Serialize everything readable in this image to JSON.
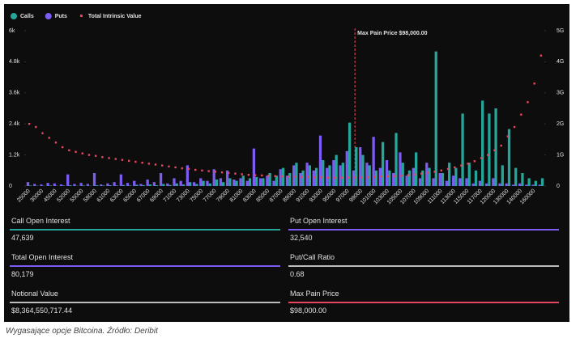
{
  "chart_data": {
    "type": "bar",
    "categories": [
      "25000",
      null,
      "30000",
      null,
      "45000",
      null,
      "52000",
      null,
      "55000",
      null,
      "58000",
      null,
      "61000",
      null,
      "63000",
      null,
      "65000",
      null,
      "67000",
      null,
      "69000",
      null,
      "71000",
      null,
      "73000",
      null,
      "75000",
      null,
      "77000",
      null,
      "79000",
      null,
      "81000",
      null,
      "83000",
      null,
      "85000",
      null,
      "87000",
      null,
      "89000",
      null,
      "91000",
      null,
      "93000",
      null,
      "95000",
      null,
      "97000",
      null,
      "99000",
      null,
      "101000",
      null,
      "103000",
      null,
      "105000",
      null,
      "107000",
      null,
      "109000",
      null,
      "111000",
      null,
      "113000",
      null,
      "115000",
      null,
      "117000",
      null,
      "120000",
      null,
      "130000",
      null,
      "140000",
      null,
      "160000",
      null
    ],
    "series": [
      {
        "name": "Calls",
        "type": "bar",
        "color": "#26a69a",
        "values": [
          20,
          10,
          10,
          20,
          10,
          20,
          30,
          10,
          20,
          10,
          30,
          20,
          30,
          20,
          40,
          20,
          50,
          30,
          60,
          30,
          80,
          40,
          100,
          60,
          150,
          80,
          200,
          100,
          250,
          150,
          300,
          200,
          400,
          300,
          350,
          300,
          500,
          400,
          700,
          500,
          900,
          600,
          800,
          700,
          1000,
          800,
          1200,
          900,
          2450,
          1500,
          1200,
          800,
          600,
          1700,
          600,
          2050,
          900,
          600,
          1300,
          600,
          700,
          5200,
          500,
          900,
          700,
          2800,
          900,
          600,
          3300,
          2800,
          3000,
          800,
          2200,
          700,
          500,
          300,
          200,
          300
        ]
      },
      {
        "name": "Puts",
        "type": "bar",
        "color": "#7c5cf2",
        "values": [
          150,
          80,
          60,
          120,
          100,
          60,
          450,
          80,
          120,
          80,
          500,
          60,
          100,
          150,
          450,
          120,
          200,
          80,
          250,
          150,
          500,
          100,
          300,
          200,
          800,
          150,
          300,
          200,
          650,
          300,
          600,
          250,
          300,
          200,
          1450,
          300,
          400,
          200,
          650,
          400,
          800,
          500,
          900,
          600,
          1950,
          700,
          1000,
          800,
          1350,
          600,
          1500,
          900,
          1900,
          700,
          1000,
          500,
          1300,
          400,
          700,
          300,
          900,
          300,
          500,
          200,
          400,
          300,
          300,
          100,
          200,
          100,
          300,
          100,
          100,
          50,
          100,
          50,
          50,
          50
        ]
      },
      {
        "name": "Total Intrinsic Value",
        "type": "scatter",
        "axis": "y2",
        "color": "#e8465e",
        "values": [
          2.0,
          1.9,
          1.7,
          1.55,
          1.4,
          1.25,
          1.15,
          1.1,
          1.05,
          1.0,
          0.97,
          0.93,
          0.9,
          0.87,
          0.84,
          0.81,
          0.78,
          0.75,
          0.72,
          0.69,
          0.66,
          0.63,
          0.6,
          0.57,
          0.55,
          0.52,
          0.5,
          0.48,
          0.46,
          0.44,
          0.42,
          0.4,
          0.38,
          0.36,
          0.35,
          0.34,
          0.33,
          0.32,
          0.31,
          0.3,
          0.3,
          0.29,
          0.29,
          0.28,
          0.28,
          0.27,
          0.27,
          0.27,
          0.27,
          0.27,
          0.28,
          0.28,
          0.29,
          0.3,
          0.31,
          0.32,
          0.33,
          0.35,
          0.37,
          0.4,
          0.43,
          0.46,
          0.5,
          0.55,
          0.6,
          0.66,
          0.72,
          0.8,
          0.9,
          1.0,
          1.15,
          1.3,
          1.6,
          1.9,
          2.3,
          2.7,
          3.3,
          4.2
        ]
      }
    ],
    "ylim": [
      0,
      6000
    ],
    "yticks": [
      0,
      {
        "value": 1200,
        "label": "1.2k"
      },
      {
        "value": 2400,
        "label": "2.4k"
      },
      {
        "value": 3600,
        "label": "3.6k"
      },
      {
        "value": 4800,
        "label": "4.8k"
      },
      {
        "value": 6000,
        "label": "6k"
      }
    ],
    "y2lim": [
      0,
      5
    ],
    "y2ticks": [
      0,
      {
        "value": 1,
        "label": "1G"
      },
      {
        "value": 2,
        "label": "2G"
      },
      {
        "value": 3,
        "label": "3G"
      },
      {
        "value": 4,
        "label": "4G"
      },
      {
        "value": 5,
        "label": "5G"
      }
    ],
    "annotation": {
      "text": "Max Pain Price $98,000.00",
      "x": 98000,
      "color": "#e8465e"
    }
  },
  "stats": [
    {
      "label": "Call Open Interest",
      "value": "47,639",
      "color": "#26a69a"
    },
    {
      "label": "Put Open Interest",
      "value": "32,540",
      "color": "#7c5cf2"
    },
    {
      "label": "Total Open Interest",
      "value": "80,179",
      "color": "#7c5cf2"
    },
    {
      "label": "Put/Call Ratio",
      "value": "0.68",
      "color": "#bdbdbd"
    },
    {
      "label": "Notional Value",
      "value": "$8,364,550,717.44",
      "color": "#bdbdbd"
    },
    {
      "label": "Max Pain Price",
      "value": "$98,000.00",
      "color": "#e8465e"
    }
  ],
  "caption": "Wygasające opcje Bitcoina. Źródło: Deribit"
}
